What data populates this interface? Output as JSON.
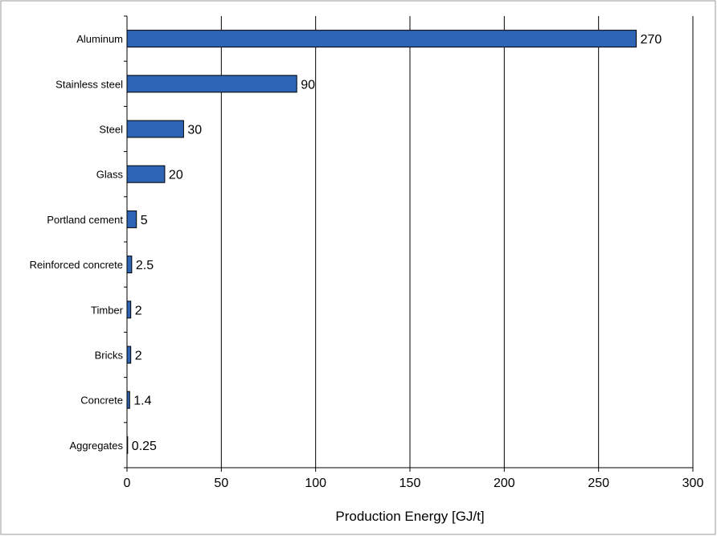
{
  "chart_data": {
    "type": "bar",
    "orientation": "horizontal",
    "title": "",
    "xlabel": "Production Energy [GJ/t]",
    "ylabel": "",
    "xlim": [
      0,
      300
    ],
    "xticks": [
      0,
      50,
      100,
      150,
      200,
      250,
      300
    ],
    "grid": "vertical",
    "legend": "none",
    "bar_color": "#2E64B4",
    "categories": [
      "Aluminum",
      "Stainless steel",
      "Steel",
      "Glass",
      "Portland cement",
      "Reinforced concrete",
      "Timber",
      "Bricks",
      "Concrete",
      "Aggregates"
    ],
    "values": [
      270,
      90,
      30,
      20,
      5,
      2.5,
      2,
      2,
      1.4,
      0.25
    ],
    "data_labels": [
      "270",
      "90",
      "30",
      "20",
      "5",
      "2.5",
      "2",
      "2",
      "1.4",
      "0.25"
    ]
  }
}
